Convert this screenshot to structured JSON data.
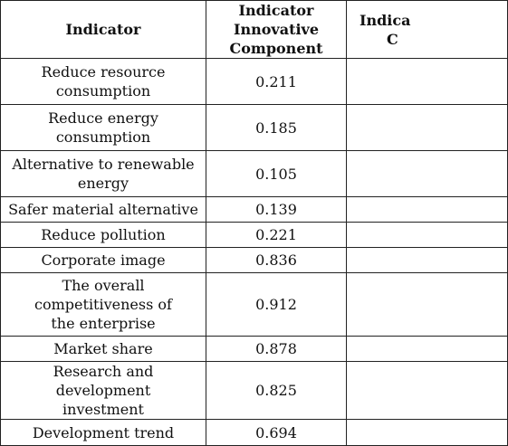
{
  "table": {
    "headers": {
      "indicator": "Indicator",
      "innovative_line1": "Indicator Innovative",
      "innovative_line2": "Component",
      "third_line1": "Indica",
      "third_line2": "C"
    },
    "rows": [
      {
        "indicator": "Reduce resource consumption",
        "value": "0.211"
      },
      {
        "indicator": "Reduce energy consumption",
        "value": "0.185"
      },
      {
        "indicator": "Alternative to renewable energy",
        "value": "0.105"
      },
      {
        "indicator": "Safer material alternative",
        "value": "0.139"
      },
      {
        "indicator": "Reduce pollution",
        "value": "0.221"
      },
      {
        "indicator": "Corporate image",
        "value": "0.836"
      },
      {
        "indicator": "The overall competitiveness of the enterprise",
        "value": "0.912"
      },
      {
        "indicator": "Market share",
        "value": "0.878"
      },
      {
        "indicator": "Research and development investment",
        "value": "0.825"
      },
      {
        "indicator": "Development trend",
        "value": "0.694"
      }
    ]
  }
}
